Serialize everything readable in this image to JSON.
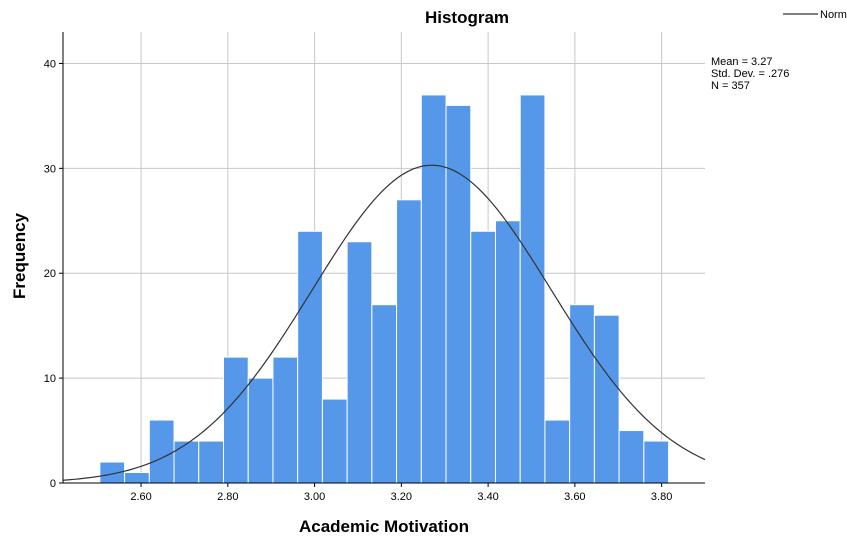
{
  "chart_data": {
    "type": "bar",
    "title": "Histogram",
    "xlabel": "Academic Motivation",
    "ylabel": "Frequency",
    "xlim": [
      2.42,
      3.9
    ],
    "ylim": [
      0,
      43
    ],
    "x_ticks": [
      "2.60",
      "2.80",
      "3.00",
      "3.20",
      "3.40",
      "3.60",
      "3.80"
    ],
    "x_tick_values": [
      2.6,
      2.8,
      3.0,
      3.2,
      3.4,
      3.6,
      3.8
    ],
    "y_ticks": [
      "0",
      "10",
      "20",
      "30",
      "40"
    ],
    "y_tick_values": [
      0,
      10,
      20,
      30,
      40
    ],
    "grid": true,
    "bin_width": 0.057,
    "bins": [
      {
        "start": 2.505,
        "count": 2
      },
      {
        "start": 2.562,
        "count": 1
      },
      {
        "start": 2.619,
        "count": 6
      },
      {
        "start": 2.676,
        "count": 4
      },
      {
        "start": 2.733,
        "count": 4
      },
      {
        "start": 2.79,
        "count": 12
      },
      {
        "start": 2.847,
        "count": 10
      },
      {
        "start": 2.904,
        "count": 12
      },
      {
        "start": 2.961,
        "count": 24
      },
      {
        "start": 3.018,
        "count": 8
      },
      {
        "start": 3.075,
        "count": 23
      },
      {
        "start": 3.132,
        "count": 17
      },
      {
        "start": 3.189,
        "count": 27
      },
      {
        "start": 3.246,
        "count": 37
      },
      {
        "start": 3.303,
        "count": 36
      },
      {
        "start": 3.36,
        "count": 24
      },
      {
        "start": 3.417,
        "count": 25
      },
      {
        "start": 3.474,
        "count": 37
      },
      {
        "start": 3.531,
        "count": 6
      },
      {
        "start": 3.588,
        "count": 17
      },
      {
        "start": 3.645,
        "count": 16
      },
      {
        "start": 3.702,
        "count": 5
      },
      {
        "start": 3.759,
        "count": 4
      }
    ],
    "normal_curve": {
      "mean": 3.27,
      "sd": 0.276,
      "n": 357,
      "peak": 30.3
    },
    "stats": [
      "Mean = 3.27",
      "Std. Dev. = .276",
      "N = 357"
    ],
    "legend": {
      "label": "Normal",
      "position": "top-right"
    },
    "colors": {
      "bar": "#5597e8",
      "bar_edge": "#ffffff",
      "grid": "#c8c8c8",
      "curve": "#333333",
      "axis": "#000000"
    }
  }
}
